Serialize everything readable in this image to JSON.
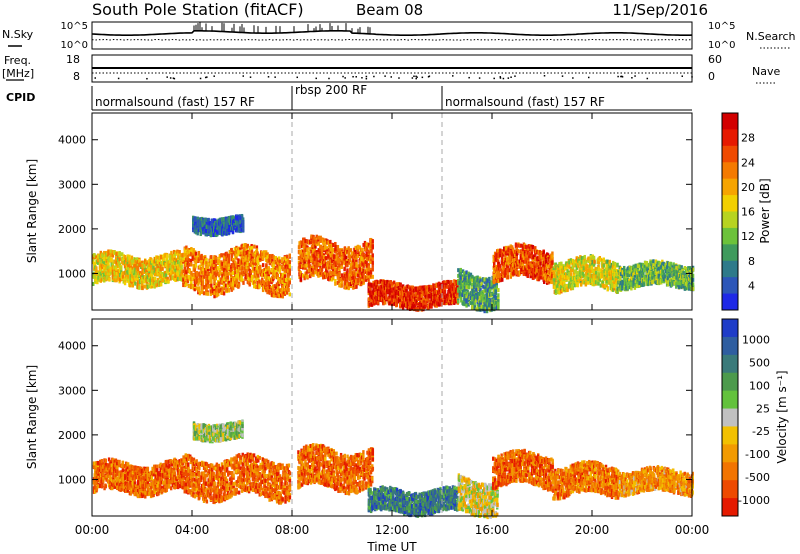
{
  "header": {
    "station": "South Pole Station (fitACF)",
    "beam": "Beam 08",
    "date": "11/Sep/2016"
  },
  "top_panels": {
    "nsky_label": "N.Sky",
    "nsky_ticks": [
      "10^5",
      "10^0"
    ],
    "nsearch_label": "N.Search",
    "nsearch_ticks": [
      "10^5",
      "10^0"
    ],
    "freq_label": "Freq.",
    "freq_unit": "[MHz]",
    "freq_ticks": [
      "18",
      "8"
    ],
    "nave_label": "Nave",
    "nave_ticks": [
      "60",
      "0"
    ],
    "cpid_label": "CPID",
    "cpid_segments": [
      {
        "label": "normalsound (fast) 157 RF",
        "start_h": 0,
        "end_h": 8
      },
      {
        "label": "rbsp 200 RF",
        "start_h": 8,
        "end_h": 14
      },
      {
        "label": "normalsound (fast) 157 RF",
        "start_h": 14,
        "end_h": 24
      }
    ]
  },
  "chart_data": [
    {
      "type": "heatmap",
      "name": "power",
      "ylabel": "Slant Range [km]",
      "xlim": [
        0,
        24
      ],
      "ylim": [
        180,
        4600
      ],
      "yticks": [
        1000,
        2000,
        3000,
        4000
      ],
      "colorbar": {
        "label": "Power [dB]",
        "ticks": [
          "4",
          "8",
          "12",
          "16",
          "20",
          "24",
          "28"
        ],
        "colors": [
          "#1e28e6",
          "#2c56b8",
          "#2e7a8a",
          "#3f9a5c",
          "#6cc23a",
          "#b7d320",
          "#f2d000",
          "#f6a400",
          "#f47a00",
          "#ef4a00",
          "#e61a00",
          "#d20000"
        ]
      },
      "echo_bands": [
        {
          "t0": 0.0,
          "t1": 3.6,
          "r0": 800,
          "r1": 1450,
          "c": 0.55
        },
        {
          "t0": 3.6,
          "t1": 7.9,
          "r0": 650,
          "r1": 1550,
          "c": 0.7
        },
        {
          "t0": 4.0,
          "t1": 6.0,
          "r0": 1950,
          "r1": 2300,
          "c": 0.15
        },
        {
          "t0": 8.2,
          "t1": 11.2,
          "r0": 850,
          "r1": 1750,
          "c": 0.75
        },
        {
          "t0": 11.0,
          "t1": 14.6,
          "r0": 300,
          "r1": 800,
          "c": 0.85
        },
        {
          "t0": 14.6,
          "t1": 16.2,
          "r0": 300,
          "r1": 1050,
          "c": 0.3
        },
        {
          "t0": 16.0,
          "t1": 18.4,
          "r0": 900,
          "r1": 1600,
          "c": 0.78
        },
        {
          "t0": 18.4,
          "t1": 21.0,
          "r0": 700,
          "r1": 1350,
          "c": 0.5
        },
        {
          "t0": 21.0,
          "t1": 24.0,
          "r0": 750,
          "r1": 1250,
          "c": 0.35
        }
      ]
    },
    {
      "type": "heatmap",
      "name": "velocity",
      "xlabel": "Time UT",
      "ylabel": "Slant Range [km]",
      "xlim": [
        0,
        24
      ],
      "xticks": [
        "00:00",
        "04:00",
        "08:00",
        "12:00",
        "16:00",
        "20:00",
        "00:00"
      ],
      "ylim": [
        180,
        4600
      ],
      "yticks": [
        1000,
        2000,
        3000,
        4000
      ],
      "colorbar": {
        "label": "Velocity [m s⁻¹]",
        "ticks": [
          "1000",
          "500",
          "100",
          "25",
          "-25",
          "-100",
          "-500",
          "-1000"
        ],
        "colors": [
          "#1e3cc8",
          "#2f5ea0",
          "#3a7a7a",
          "#4c9a4c",
          "#63c23c",
          "#c0c0c0",
          "#f2c000",
          "#f29a00",
          "#f27400",
          "#ee4a00",
          "#e51a00"
        ]
      },
      "echo_bands": [
        {
          "t0": 0.0,
          "t1": 3.6,
          "r0": 750,
          "r1": 1400,
          "c": 0.8
        },
        {
          "t0": 3.6,
          "t1": 7.9,
          "r0": 650,
          "r1": 1500,
          "c": 0.8
        },
        {
          "t0": 4.0,
          "t1": 6.0,
          "r0": 1950,
          "r1": 2300,
          "c": 0.45
        },
        {
          "t0": 8.2,
          "t1": 11.2,
          "r0": 850,
          "r1": 1700,
          "c": 0.8
        },
        {
          "t0": 11.0,
          "t1": 14.6,
          "r0": 300,
          "r1": 800,
          "c": 0.22
        },
        {
          "t0": 14.6,
          "t1": 16.2,
          "r0": 300,
          "r1": 1050,
          "c": 0.55
        },
        {
          "t0": 16.0,
          "t1": 18.4,
          "r0": 900,
          "r1": 1600,
          "c": 0.82
        },
        {
          "t0": 18.4,
          "t1": 21.0,
          "r0": 700,
          "r1": 1350,
          "c": 0.78
        },
        {
          "t0": 21.0,
          "t1": 24.0,
          "r0": 750,
          "r1": 1250,
          "c": 0.7
        }
      ]
    }
  ]
}
